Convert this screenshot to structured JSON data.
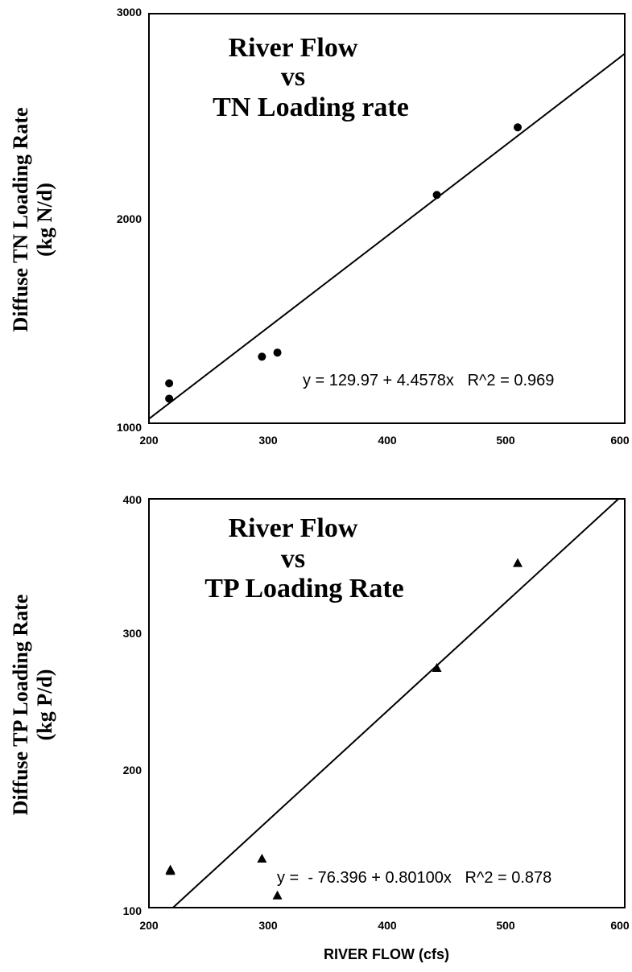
{
  "chart_data": [
    {
      "type": "scatter",
      "title_lines": [
        "River Flow",
        "vs",
        "TN Loading rate"
      ],
      "ylabel_lines": [
        "Diffuse TN Loading Rate",
        "(kg N/d)"
      ],
      "xlabel": "",
      "xlim": [
        200,
        600
      ],
      "ylim": [
        1000,
        3000
      ],
      "x_ticks": [
        "200",
        "300",
        "400",
        "500",
        "600"
      ],
      "y_ticks": [
        "1000",
        "2000",
        "3000"
      ],
      "marker": "circle",
      "series": [
        {
          "points": [
            [
              217,
              1120
            ],
            [
              217,
              1195
            ],
            [
              295,
              1325
            ],
            [
              308,
              1345
            ],
            [
              442,
              2115
            ],
            [
              510,
              2445
            ]
          ]
        }
      ],
      "fit": {
        "intercept": 129.97,
        "slope": 4.4578
      },
      "equation": "y = 129.97 + 4.4578x   R^2 = 0.969",
      "grid": false
    },
    {
      "type": "scatter",
      "title_lines": [
        "River Flow",
        "vs",
        "TP Loading Rate"
      ],
      "ylabel_lines": [
        "Diffuse TP Loading Rate",
        "(kg P/d)"
      ],
      "xlabel": "RIVER FLOW (cfs)",
      "xlim": [
        200,
        600
      ],
      "ylim": [
        100,
        400
      ],
      "x_ticks": [
        "200",
        "300",
        "400",
        "500",
        "600"
      ],
      "y_ticks": [
        "100",
        "200",
        "300",
        "400"
      ],
      "marker": "triangle",
      "series": [
        {
          "points": [
            [
              218,
              127
            ],
            [
              218,
              128
            ],
            [
              295,
              136
            ],
            [
              308,
              109
            ],
            [
              442,
              276
            ],
            [
              510,
              353
            ]
          ]
        }
      ],
      "fit": {
        "intercept": -76.396,
        "slope": 0.801
      },
      "equation": "y =  - 76.396 + 0.80100x   R^2 = 0.878",
      "grid": false
    }
  ]
}
